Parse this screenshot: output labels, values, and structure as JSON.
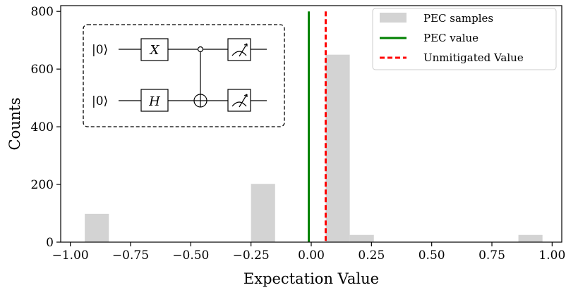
{
  "chart_data": {
    "type": "histogram",
    "xlabel": "Expectation Value",
    "ylabel": "Counts",
    "xlim": [
      -1.04,
      1.04
    ],
    "ylim": [
      0,
      820
    ],
    "x_ticks": [
      -1.0,
      -0.75,
      -0.5,
      -0.25,
      0.0,
      0.25,
      0.5,
      0.75,
      1.0
    ],
    "x_tick_labels": [
      "−1.00",
      "−0.75",
      "−0.50",
      "−0.25",
      "0.00",
      "0.25",
      "0.50",
      "0.75",
      "1.00"
    ],
    "y_ticks": [
      0,
      200,
      400,
      600,
      800
    ],
    "y_tick_labels": [
      "0",
      "200",
      "400",
      "600",
      "800"
    ],
    "grid": false,
    "legend_position": "top-right",
    "histogram": {
      "name": "PEC samples",
      "color": "#d3d3d3",
      "bins": [
        {
          "x0": -0.94,
          "x1": -0.84,
          "count": 98
        },
        {
          "x0": -0.25,
          "x1": -0.15,
          "count": 202
        },
        {
          "x0": 0.06,
          "x1": 0.16,
          "count": 650
        },
        {
          "x0": 0.16,
          "x1": 0.26,
          "count": 25
        },
        {
          "x0": 0.86,
          "x1": 0.96,
          "count": 25
        }
      ]
    },
    "vlines": [
      {
        "name": "PEC value",
        "x": -0.01,
        "color": "#008000",
        "style": "solid"
      },
      {
        "name": "Unmitigated Value",
        "x": 0.06,
        "color": "#ff0000",
        "style": "dashed"
      }
    ]
  },
  "inset": {
    "qubit_labels": [
      "|0⟩",
      "|0⟩"
    ],
    "gates": [
      "X",
      "H"
    ]
  }
}
